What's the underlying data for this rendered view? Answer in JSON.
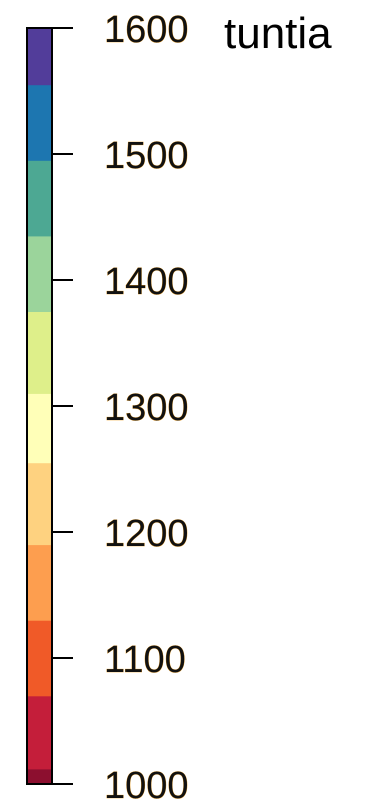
{
  "chart_data": {
    "type": "colorbar",
    "unit": "tuntia",
    "range": [
      1000,
      1600
    ],
    "ticks": [
      "1000",
      "1100",
      "1200",
      "1300",
      "1400",
      "1500",
      "1600"
    ],
    "tick_values": [
      1000,
      1100,
      1200,
      1300,
      1400,
      1500,
      1600
    ],
    "bins": [
      {
        "from": 1000,
        "to": 1012,
        "color": "#8c0f2f"
      },
      {
        "from": 1012,
        "to": 1070,
        "color": "#c41e3a"
      },
      {
        "from": 1070,
        "to": 1130,
        "color": "#f05a28"
      },
      {
        "from": 1130,
        "to": 1190,
        "color": "#fd9e4f"
      },
      {
        "from": 1190,
        "to": 1255,
        "color": "#fed280"
      },
      {
        "from": 1255,
        "to": 1310,
        "color": "#ffffb8"
      },
      {
        "from": 1310,
        "to": 1375,
        "color": "#deef8a"
      },
      {
        "from": 1375,
        "to": 1435,
        "color": "#9bd49b"
      },
      {
        "from": 1435,
        "to": 1495,
        "color": "#4da893"
      },
      {
        "from": 1495,
        "to": 1555,
        "color": "#1d76b0"
      },
      {
        "from": 1555,
        "to": 1600,
        "color": "#523d9a"
      }
    ],
    "frame_color": "#000000"
  }
}
